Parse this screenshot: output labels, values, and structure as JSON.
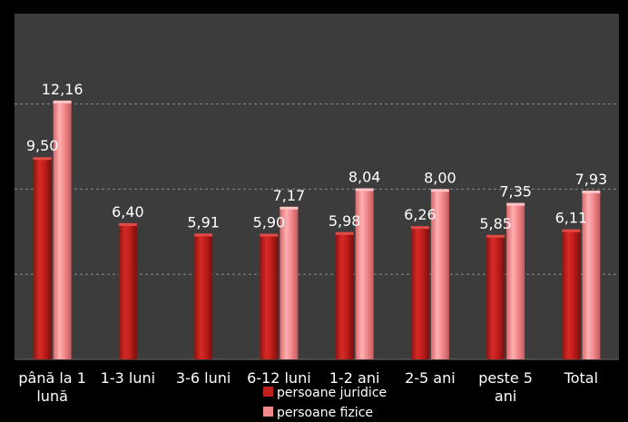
{
  "chart_data": {
    "type": "bar",
    "categories": [
      [
        "până la 1",
        "lună"
      ],
      [
        "1-3 luni"
      ],
      [
        "3-6 luni"
      ],
      [
        "6-12 luni"
      ],
      [
        "1-2 ani"
      ],
      [
        "2-5 ani"
      ],
      [
        "peste 5",
        "ani"
      ],
      [
        "Total"
      ]
    ],
    "series": [
      {
        "name": "persoane juridice",
        "values": [
          9.5,
          6.4,
          5.91,
          5.9,
          5.98,
          6.26,
          5.85,
          6.11
        ],
        "labels": [
          "9,50",
          "6,40",
          "5,91",
          "5,90",
          "5,98",
          "6,26",
          "5,85",
          "6,11"
        ],
        "color": "#c0201e"
      },
      {
        "name": "persoane fizice",
        "values": [
          12.16,
          null,
          null,
          7.17,
          8.04,
          8.0,
          7.35,
          7.93
        ],
        "labels": [
          "12,16",
          null,
          null,
          "7,17",
          "8,04",
          "8,00",
          "7,35",
          "7,93"
        ],
        "color": "#f08a8c"
      }
    ],
    "ylim": [
      0,
      16
    ],
    "grid": true,
    "gridlines": [
      4,
      8,
      12
    ],
    "legend_position": "bottom-center",
    "plot_background": "#3c3c3c",
    "page_background": "#000000"
  }
}
